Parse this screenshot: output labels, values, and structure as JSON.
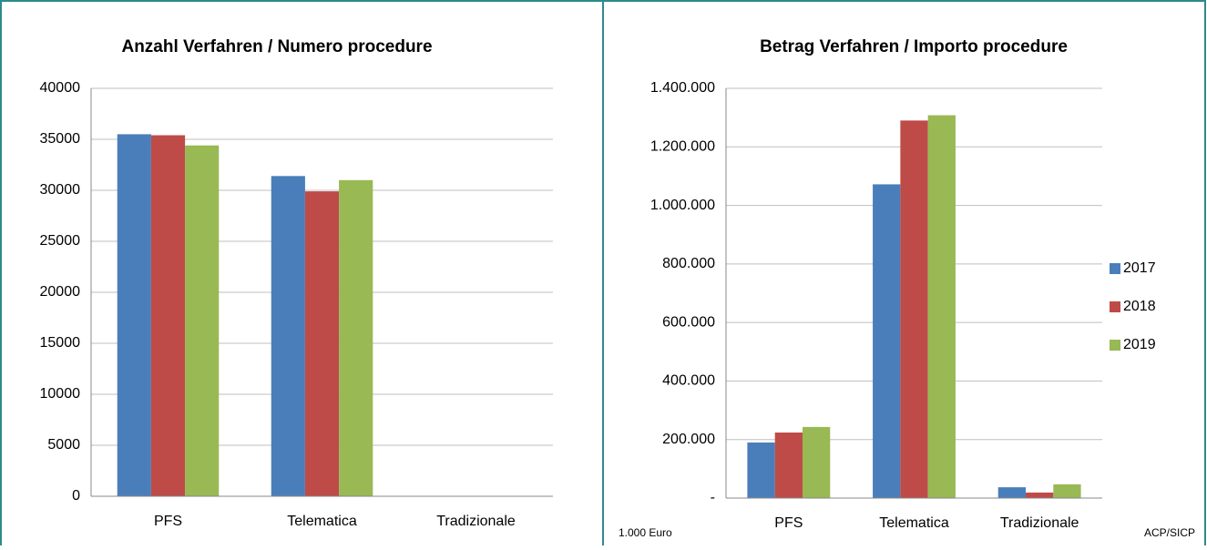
{
  "chart_data": [
    {
      "type": "bar",
      "title": "Anzahl Verfahren / Numero procedure",
      "categories": [
        "PFS",
        "Telematica",
        "Tradizionale"
      ],
      "series": [
        {
          "name": "2017",
          "color": "#4a7ebb",
          "values": [
            35500,
            31400,
            0
          ]
        },
        {
          "name": "2018",
          "color": "#be4b48",
          "values": [
            35400,
            29900,
            0
          ]
        },
        {
          "name": "2019",
          "color": "#98b954",
          "values": [
            34400,
            31000,
            0
          ]
        }
      ],
      "ylim": [
        0,
        40000
      ],
      "yticks": [
        0,
        5000,
        10000,
        15000,
        20000,
        25000,
        30000,
        35000,
        40000
      ],
      "grid": true
    },
    {
      "type": "bar",
      "title": "Betrag Verfahren / Importo procedure",
      "categories": [
        "PFS",
        "Telematica",
        "Tradizionale"
      ],
      "series": [
        {
          "name": "2017",
          "color": "#4a7ebb",
          "values": [
            190000,
            1072000,
            37000
          ]
        },
        {
          "name": "2018",
          "color": "#be4b48",
          "values": [
            224000,
            1290000,
            19000
          ]
        },
        {
          "name": "2019",
          "color": "#98b954",
          "values": [
            243000,
            1308000,
            47000
          ]
        }
      ],
      "ylim": [
        0,
        1400000
      ],
      "yticks": [
        {
          "value": 0,
          "label": "-"
        },
        {
          "value": 200000,
          "label": "200.000"
        },
        {
          "value": 400000,
          "label": "400.000"
        },
        {
          "value": 600000,
          "label": "600.000"
        },
        {
          "value": 800000,
          "label": "800.000"
        },
        {
          "value": 1000000,
          "label": "1.000.000"
        },
        {
          "value": 1200000,
          "label": "1.200.000"
        },
        {
          "value": 1400000,
          "label": "1.400.000"
        }
      ],
      "grid": true,
      "legend": "right",
      "unit_note": "1.000 Euro",
      "source": "ACP/SICP"
    }
  ]
}
